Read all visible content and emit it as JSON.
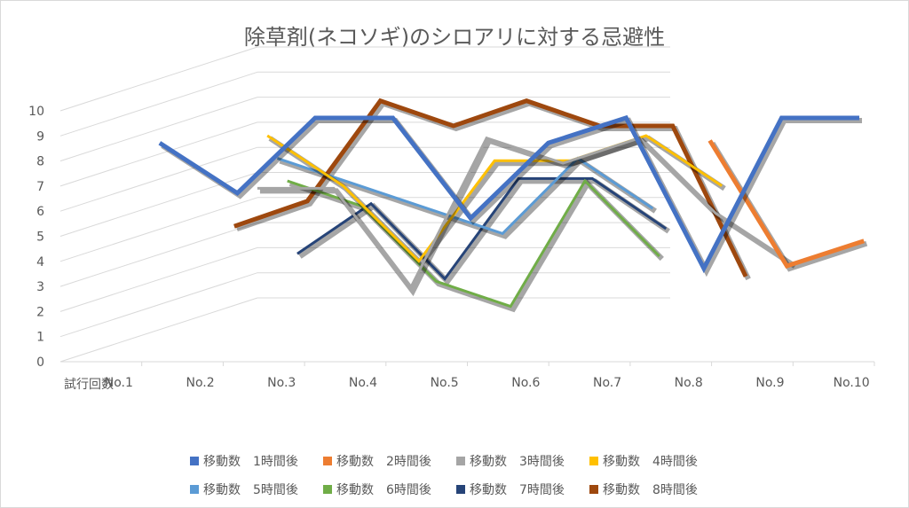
{
  "chart_data": {
    "type": "line",
    "title": "除草剤(ネコソギ)のシロアリに対する忌避性",
    "xlabel": "試行回数",
    "categories": [
      "No.1",
      "No.2",
      "No.3",
      "No.4",
      "No.5",
      "No.6",
      "No.7",
      "No.8",
      "No.9",
      "No.10"
    ],
    "ylim": [
      0,
      10
    ],
    "yticks": [
      0,
      1,
      2,
      3,
      4,
      5,
      6,
      7,
      8,
      9,
      10
    ],
    "legend_position": "bottom",
    "grid": true,
    "series": [
      {
        "name": "移動数　1時間後",
        "color": "#4472c4",
        "values": [
          8,
          6,
          9,
          9,
          5,
          8,
          9,
          3,
          9,
          9
        ]
      },
      {
        "name": "移動数　2時間後",
        "color": "#ed7d31",
        "values": [
          null,
          null,
          null,
          null,
          null,
          null,
          null,
          8,
          3,
          4
        ]
      },
      {
        "name": "移動数　3時間後",
        "color": "#a5a5a5",
        "values": [
          null,
          6,
          6,
          2,
          8,
          7,
          8,
          5,
          3,
          null
        ]
      },
      {
        "name": "移動数　4時間後",
        "color": "#ffc000",
        "values": [
          null,
          8,
          6,
          3,
          7,
          7,
          8,
          6,
          null,
          null
        ]
      },
      {
        "name": "移動数　5時間後",
        "color": "#5b9bd5",
        "values": [
          null,
          7,
          6,
          5,
          4,
          7,
          5,
          null,
          null,
          null
        ]
      },
      {
        "name": "移動数　6時間後",
        "color": "#70ad47",
        "values": [
          null,
          6,
          5,
          2,
          1,
          6,
          3,
          null,
          null,
          null
        ]
      },
      {
        "name": "移動数　7時間後",
        "color": "#264478",
        "values": [
          null,
          3,
          5,
          2,
          6,
          6,
          4,
          null,
          null,
          null
        ]
      },
      {
        "name": "移動数　8時間後",
        "color": "#9e480e",
        "values": [
          4,
          5,
          9,
          8,
          9,
          8,
          8,
          2,
          null,
          null
        ]
      }
    ]
  }
}
